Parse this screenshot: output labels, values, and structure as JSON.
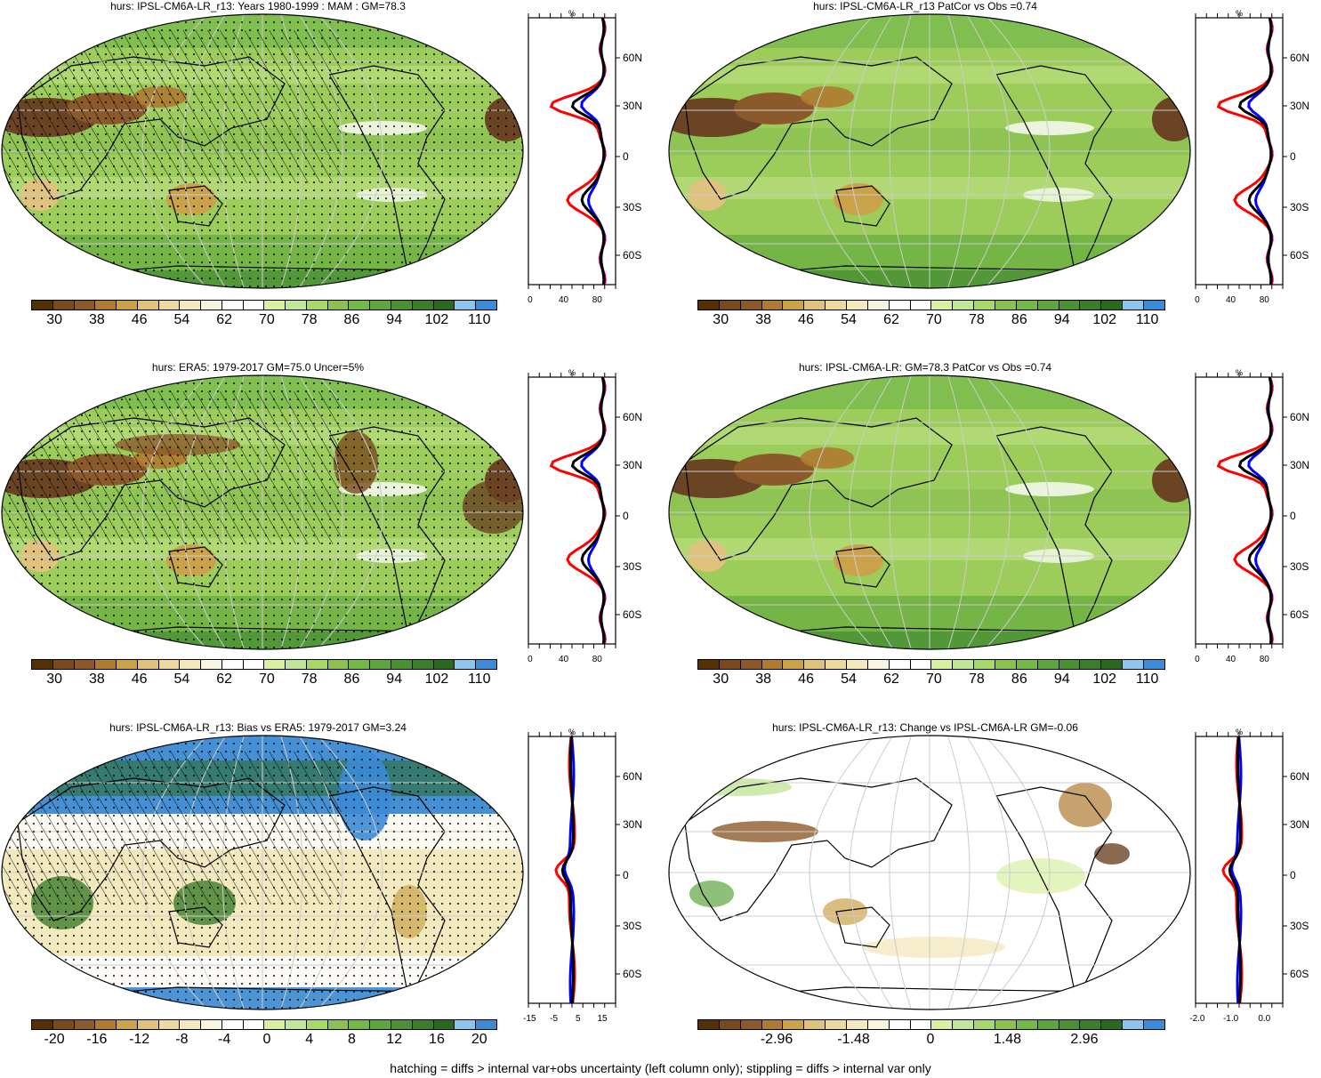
{
  "panels": [
    {
      "id": "p1",
      "title": "hurs: IPSL-CM6A-LR_r13: Years 1980-1999 : MAM : GM=78.3",
      "colorbar_labels": [
        "30",
        "38",
        "46",
        "54",
        "62",
        "70",
        "78",
        "86",
        "94",
        "102",
        "110"
      ],
      "profile": {
        "xlabels": [
          "0",
          "40",
          "80"
        ],
        "ylabels": [
          "60N",
          "30N",
          "0",
          "30S",
          "60S"
        ],
        "unit": "%"
      }
    },
    {
      "id": "p2",
      "title": "hurs: IPSL-CM6A-LR_r13 PatCor vs Obs =0.74",
      "colorbar_labels": [
        "30",
        "38",
        "46",
        "54",
        "62",
        "70",
        "78",
        "86",
        "94",
        "102",
        "110"
      ],
      "profile": {
        "xlabels": [
          "0",
          "40",
          "80"
        ],
        "ylabels": [
          "60N",
          "30N",
          "0",
          "30S",
          "60S"
        ],
        "unit": "%"
      }
    },
    {
      "id": "p3",
      "title": "hurs: ERA5: 1979-2017 GM=75.0 Uncer=5%",
      "colorbar_labels": [
        "30",
        "38",
        "46",
        "54",
        "62",
        "70",
        "78",
        "86",
        "94",
        "102",
        "110"
      ],
      "profile": {
        "xlabels": [
          "0",
          "40",
          "80"
        ],
        "ylabels": [
          "60N",
          "30N",
          "0",
          "30S",
          "60S"
        ],
        "unit": "%"
      }
    },
    {
      "id": "p4",
      "title": "hurs: IPSL-CM6A-LR: GM=78.3 PatCor vs Obs =0.74",
      "colorbar_labels": [
        "30",
        "38",
        "46",
        "54",
        "62",
        "70",
        "78",
        "86",
        "94",
        "102",
        "110"
      ],
      "profile": {
        "xlabels": [
          "0",
          "40",
          "80"
        ],
        "ylabels": [
          "60N",
          "30N",
          "0",
          "30S",
          "60S"
        ],
        "unit": "%"
      }
    },
    {
      "id": "p5",
      "title": "hurs: IPSL-CM6A-LR_r13: Bias vs ERA5: 1979-2017 GM=3.24",
      "colorbar_labels": [
        "-20",
        "-16",
        "-12",
        "-8",
        "-4",
        "0",
        "4",
        "8",
        "12",
        "16",
        "20"
      ],
      "profile": {
        "xlabels": [
          "-15",
          "-5",
          "5",
          "15"
        ],
        "ylabels": [
          "60N",
          "30N",
          "0",
          "30S",
          "60S"
        ],
        "unit": "%"
      }
    },
    {
      "id": "p6",
      "title": "hurs: IPSL-CM6A-LR_r13: Change vs IPSL-CM6A-LR GM=-0.06",
      "colorbar_labels": [
        "-2.96",
        "-1.48",
        "0",
        "1.48",
        "2.96"
      ],
      "profile": {
        "xlabels": [
          "-2.0",
          "-1.0",
          "0.0"
        ],
        "ylabels": [
          "60N",
          "30N",
          "0",
          "30S",
          "60S"
        ],
        "unit": "%"
      }
    }
  ],
  "colors": {
    "brown_dark": "#6b4423",
    "green_mid": "#8cc152",
    "green_dark": "#3f7f2a",
    "blue": "#3b8bd6",
    "line_red": "#ff0000",
    "line_blue": "#0000ff",
    "line_black": "#000000"
  },
  "footnote": "hatching = diffs > internal var+obs uncertainty (left column only); stippling = diffs > internal var only"
}
